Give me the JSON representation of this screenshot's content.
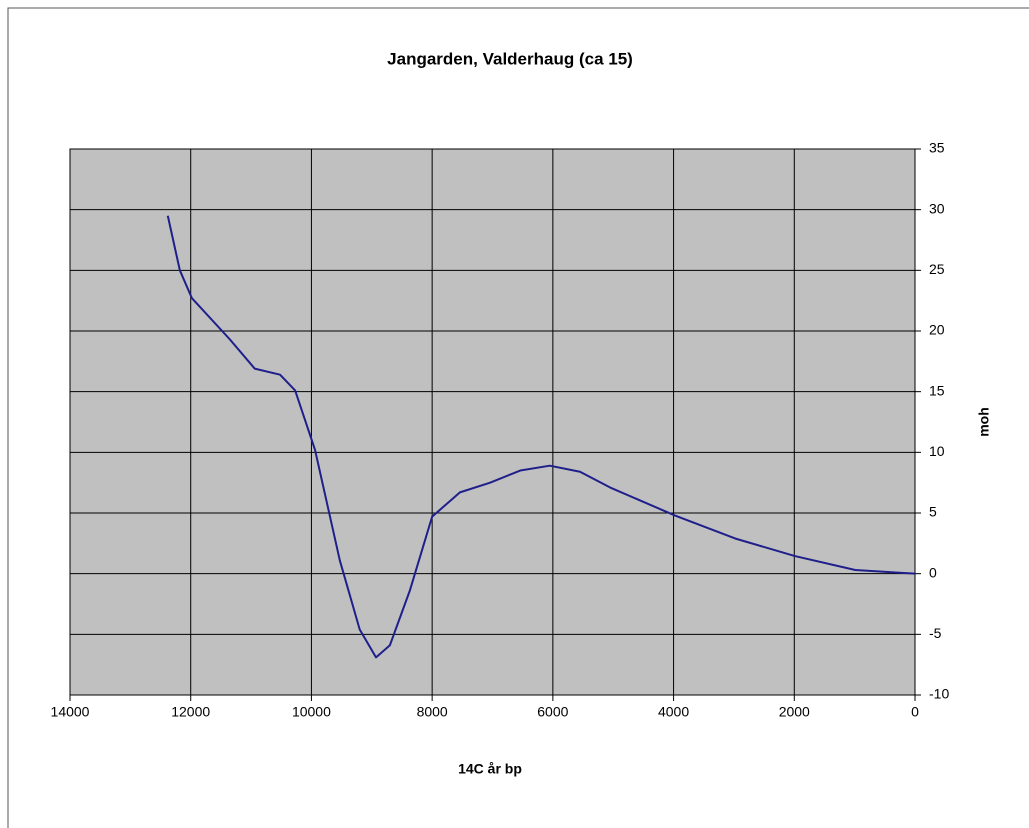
{
  "chart_data": {
    "type": "line",
    "title": "Jangarden, Valderhaug (ca 15)",
    "x_label": "14C år bp",
    "y_label": "moh",
    "xlim": [
      14000,
      0
    ],
    "xticks": [
      14000,
      12000,
      10000,
      8000,
      6000,
      4000,
      2000,
      0
    ],
    "ylim": [
      -10,
      35
    ],
    "yticks": [
      -10,
      -5,
      0,
      5,
      10,
      15,
      20,
      25,
      30,
      35
    ],
    "grid": true,
    "plot_background": "#c0c0c0",
    "y_axis_side": "right",
    "series": [
      {
        "color": "#1f1f8c",
        "x": [
          12380,
          12180,
          11980,
          11350,
          10940,
          10520,
          10270,
          9940,
          9530,
          9200,
          8930,
          8700,
          8370,
          8000,
          7540,
          7040,
          6540,
          6050,
          5550,
          5050,
          3980,
          2980,
          1990,
          990,
          0
        ],
        "values": [
          29.5,
          25,
          22.7,
          19.3,
          16.9,
          16.4,
          15.1,
          10.2,
          1.1,
          -4.6,
          -6.9,
          -5.9,
          -1.4,
          4.7,
          6.7,
          7.5,
          8.5,
          8.9,
          8.4,
          7.1,
          4.8,
          2.9,
          1.45,
          0.3,
          0
        ]
      }
    ]
  }
}
